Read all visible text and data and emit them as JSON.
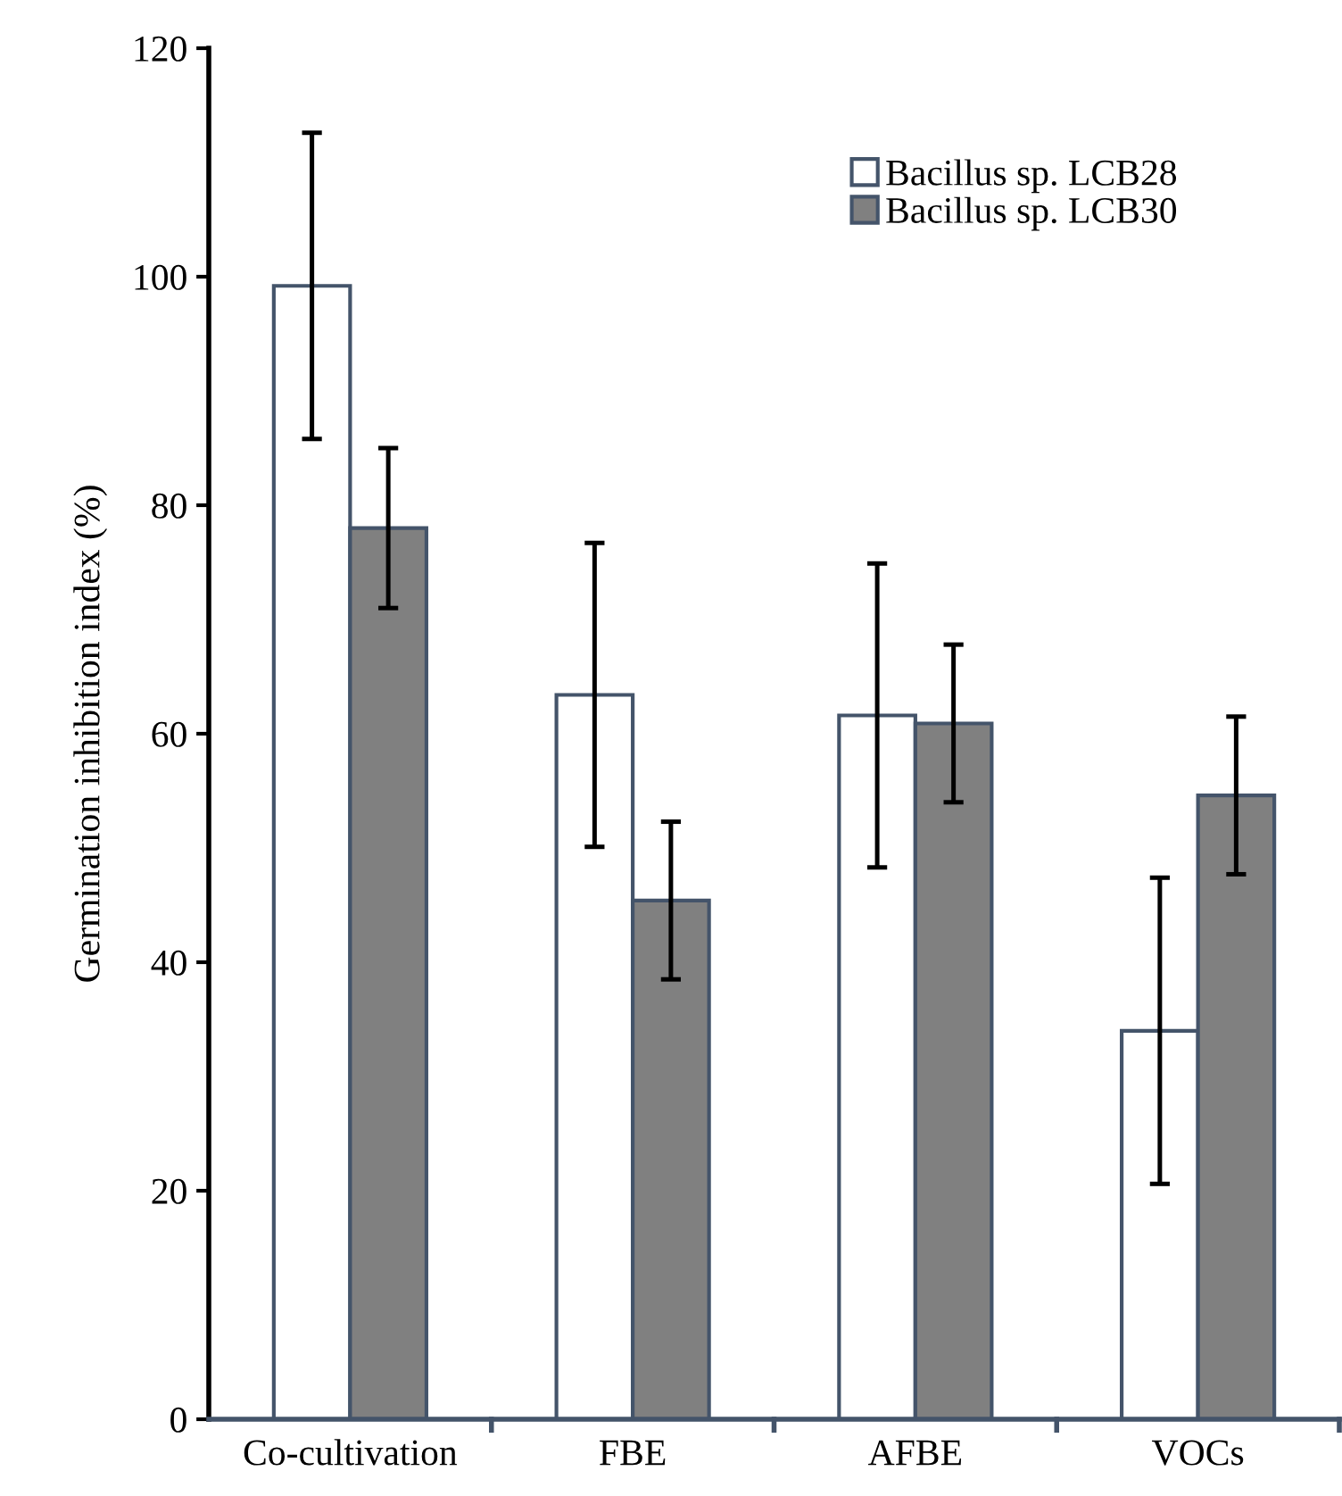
{
  "chart_data": {
    "type": "bar",
    "ylabel": "Germination inhibition index (%)",
    "categories": [
      "Co-cultivation",
      "FBE",
      "AFBE",
      "VOCs"
    ],
    "series": [
      {
        "name": "Bacillus sp. LCB28",
        "color": "#ffffff",
        "values": [
          99.2,
          63.4,
          61.6,
          34.0
        ],
        "errors": [
          13.4,
          13.3,
          13.3,
          13.4
        ]
      },
      {
        "name": "Bacillus sp. LCB30",
        "color": "#808080",
        "values": [
          78.0,
          45.4,
          60.9,
          54.6
        ],
        "errors": [
          7.0,
          6.9,
          6.9,
          6.9
        ]
      }
    ],
    "ylim": [
      0,
      120
    ],
    "yticks": [
      0,
      20,
      40,
      60,
      80,
      100,
      120
    ],
    "grid": false,
    "legend": "top right"
  }
}
